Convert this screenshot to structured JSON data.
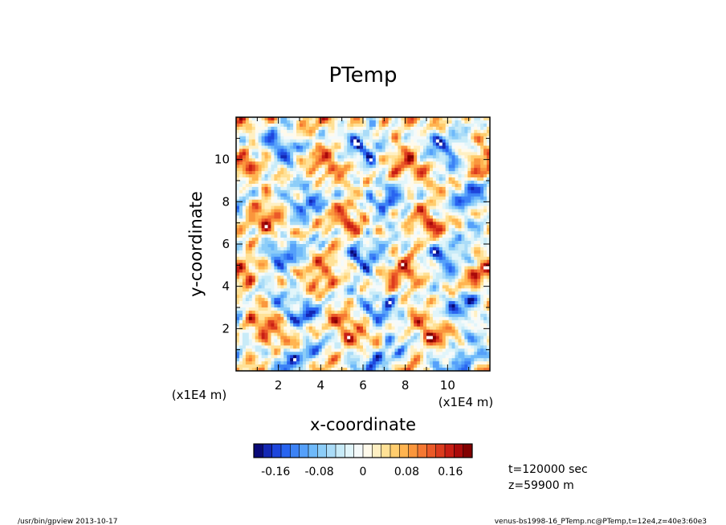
{
  "chart_data": {
    "type": "heatmap",
    "title": "PTemp",
    "xlabel": "x-coordinate",
    "ylabel": "y-coordinate",
    "x_unit": "(x1E4 m)",
    "y_unit": "(x1E4 m)",
    "xlim": [
      0,
      12
    ],
    "ylim": [
      0,
      12
    ],
    "x_ticks": [
      "2",
      "4",
      "6",
      "8",
      "10"
    ],
    "y_ticks": [
      "2",
      "4",
      "6",
      "8",
      "10"
    ],
    "value_range": [
      -0.2,
      0.2
    ],
    "colorbar_ticks": [
      "-0.16",
      "-0.08",
      "0",
      "0.08",
      "0.16"
    ],
    "colorbar_colors": [
      "#0a0a78",
      "#1428b4",
      "#1e46dc",
      "#2864f0",
      "#3c82f5",
      "#55a0fa",
      "#6eb9fa",
      "#8ccdf8",
      "#aadcf8",
      "#c8ebf8",
      "#e1f5fa",
      "#f5fafa",
      "#fffaeb",
      "#fff0c3",
      "#ffe196",
      "#ffcd6e",
      "#ffb450",
      "#fa963c",
      "#f57832",
      "#eb5a28",
      "#dc3c1e",
      "#c81e14",
      "#aa0a0a",
      "#820000"
    ],
    "cells_note": "",
    "info": [
      "t=120000 sec",
      "z=59900 m"
    ]
  },
  "footer": {
    "left": "/usr/bin/gpview  2013-10-17",
    "right": "venus-bs1998-16_PTemp.nc@PTemp,t=12e4,z=40e3:60e3"
  },
  "title": "PTemp",
  "xlabel": "x-coordinate",
  "ylabel": "y-coordinate",
  "x_unit": "(x1E4 m)",
  "y_unit": "(x1E4 m)",
  "info_t": "t=120000 sec",
  "info_z": "z=59900 m"
}
